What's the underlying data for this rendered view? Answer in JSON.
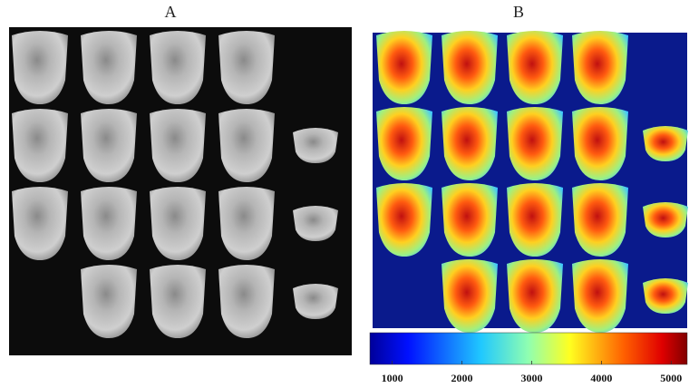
{
  "panels": [
    {
      "label": "A"
    },
    {
      "label": "B"
    }
  ],
  "colorbar": {
    "range": [
      680,
      5230
    ],
    "ticks": [
      1000,
      2000,
      3000,
      4000,
      5000
    ]
  }
}
